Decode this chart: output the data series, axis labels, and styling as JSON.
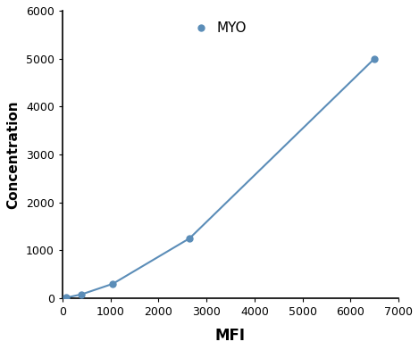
{
  "x": [
    75,
    400,
    1050,
    2650,
    6500
  ],
  "y": [
    10,
    80,
    300,
    1250,
    5000
  ],
  "line_color": "#5B8DB8",
  "marker_color": "#5B8DB8",
  "xlabel": "MFI",
  "ylabel": "Concentration",
  "legend_label": "MYO",
  "xlim": [
    0,
    7000
  ],
  "ylim": [
    0,
    6000
  ],
  "xticks": [
    0,
    1000,
    2000,
    3000,
    4000,
    5000,
    6000,
    7000
  ],
  "yticks": [
    0,
    1000,
    2000,
    3000,
    4000,
    5000,
    6000
  ],
  "xlabel_fontsize": 12,
  "ylabel_fontsize": 11,
  "tick_fontsize": 9,
  "legend_fontsize": 11,
  "background_color": "#ffffff"
}
